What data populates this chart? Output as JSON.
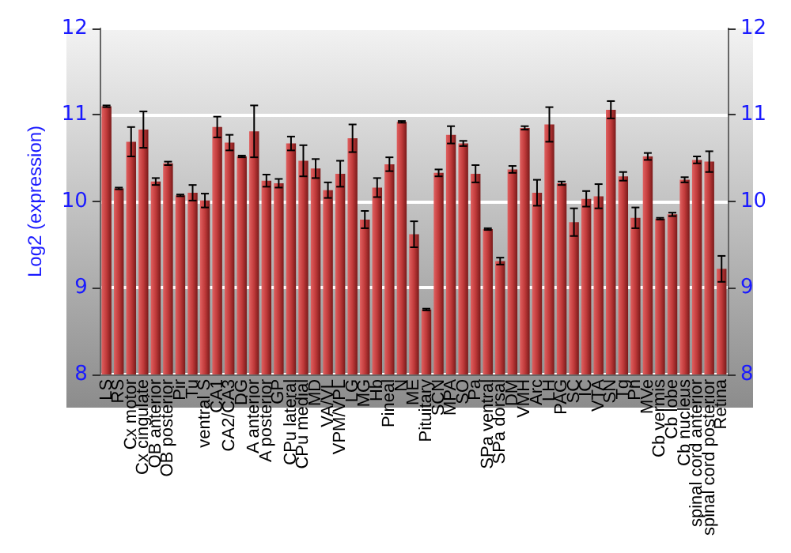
{
  "chart_data": {
    "type": "bar",
    "ylabel": "Log2 (expression)",
    "color": "#c03a3a",
    "categories": [
      "LS",
      "RS",
      "Cx motor",
      "Cx cingulate",
      "OB anterior",
      "OB posterior",
      "Pir",
      "Tu",
      "ventral S",
      "CA1",
      "CA2/CA3",
      "DG",
      "A anterior",
      "A posterior",
      "GP",
      "CPu lateral",
      "CPu medial",
      "MD",
      "VA/VL",
      "VPM/VPL",
      "LG",
      "MG",
      "Hb",
      "Pineal",
      "N",
      "ME",
      "Pituitary",
      "SCN",
      "MPA",
      "SO",
      "Pa",
      "SPa ventral",
      "SPa dorsal",
      "DM",
      "VMH",
      "Arc",
      "LH",
      "PAG",
      "SC",
      "IC",
      "VTA",
      "SN",
      "Tg",
      "Pn",
      "MVe",
      "Cb vermis",
      "Cb lobe",
      "Cb nucleus",
      "spinal cord anterior",
      "spinal cord posterior",
      "Retina"
    ],
    "values": [
      11.1,
      10.15,
      10.69,
      10.83,
      10.23,
      10.44,
      10.07,
      10.1,
      10.01,
      10.86,
      10.68,
      10.52,
      10.81,
      10.24,
      10.21,
      10.67,
      10.47,
      10.38,
      10.13,
      10.32,
      10.73,
      9.79,
      10.16,
      10.43,
      10.92,
      9.62,
      8.75,
      10.33,
      10.77,
      10.67,
      10.32,
      9.68,
      9.31,
      10.37,
      10.85,
      10.1,
      10.89,
      10.21,
      9.76,
      10.03,
      10.06,
      11.06,
      10.29,
      9.81,
      10.52,
      9.8,
      9.85,
      10.25,
      10.48,
      10.46,
      9.22
    ],
    "errors": [
      0.01,
      0.01,
      0.17,
      0.21,
      0.04,
      0.02,
      0.01,
      0.09,
      0.08,
      0.12,
      0.09,
      0.01,
      0.3,
      0.07,
      0.05,
      0.08,
      0.18,
      0.11,
      0.09,
      0.15,
      0.16,
      0.1,
      0.11,
      0.08,
      0.01,
      0.15,
      0.01,
      0.04,
      0.1,
      0.03,
      0.1,
      0.01,
      0.04,
      0.04,
      0.02,
      0.15,
      0.2,
      0.02,
      0.16,
      0.09,
      0.14,
      0.1,
      0.05,
      0.12,
      0.04,
      0.01,
      0.02,
      0.03,
      0.04,
      0.12,
      0.15
    ],
    "ylim": [
      8,
      12
    ],
    "yticks": [
      8,
      9,
      10,
      11,
      12
    ],
    "y2lim": [
      8,
      12
    ],
    "y2ticks": [
      8,
      9,
      10,
      11,
      12
    ],
    "grid": "y"
  }
}
